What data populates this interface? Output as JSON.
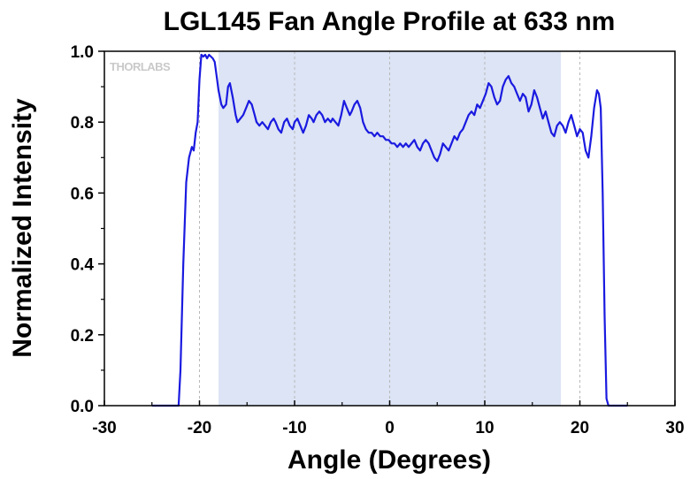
{
  "chart_data": {
    "type": "line",
    "title": "LGL145 Fan Angle Profile at 633 nm",
    "xlabel": "Angle (Degrees)",
    "ylabel": "Normalized Intensity",
    "xlim": [
      -30,
      30
    ],
    "ylim": [
      0,
      1.0
    ],
    "x_ticks": [
      -30,
      -20,
      -10,
      0,
      10,
      20,
      30
    ],
    "y_ticks": [
      0.0,
      0.2,
      0.4,
      0.6,
      0.8,
      1.0
    ],
    "x_tick_labels": [
      "-30",
      "-20",
      "-10",
      "0",
      "10",
      "20",
      "30"
    ],
    "y_tick_labels": [
      "0.0",
      "0.2",
      "0.4",
      "0.6",
      "0.8",
      "1.0"
    ],
    "grid": "vertical dashed",
    "shaded_region": {
      "x_from": -18,
      "x_to": 18,
      "color": "#dce4f5"
    },
    "logo_text": "THORLABS",
    "series": [
      {
        "color": "#1a1ae0",
        "points": [
          [
            -25.0,
            0.0
          ],
          [
            -22.2,
            0.0
          ],
          [
            -22.0,
            0.1
          ],
          [
            -21.7,
            0.4
          ],
          [
            -21.4,
            0.63
          ],
          [
            -21.1,
            0.7
          ],
          [
            -20.8,
            0.73
          ],
          [
            -20.6,
            0.72
          ],
          [
            -20.4,
            0.77
          ],
          [
            -20.2,
            0.8
          ],
          [
            -20.0,
            0.92
          ],
          [
            -19.8,
            0.99
          ],
          [
            -19.6,
            0.985
          ],
          [
            -19.4,
            0.99
          ],
          [
            -19.2,
            0.98
          ],
          [
            -19.0,
            0.99
          ],
          [
            -18.8,
            0.985
          ],
          [
            -18.6,
            0.98
          ],
          [
            -18.4,
            0.97
          ],
          [
            -18.2,
            0.93
          ],
          [
            -18.0,
            0.89
          ],
          [
            -17.7,
            0.85
          ],
          [
            -17.5,
            0.84
          ],
          [
            -17.2,
            0.85
          ],
          [
            -17.0,
            0.9
          ],
          [
            -16.8,
            0.91
          ],
          [
            -16.5,
            0.87
          ],
          [
            -16.2,
            0.82
          ],
          [
            -16.0,
            0.8
          ],
          [
            -15.7,
            0.81
          ],
          [
            -15.4,
            0.82
          ],
          [
            -15.1,
            0.84
          ],
          [
            -14.8,
            0.86
          ],
          [
            -14.5,
            0.85
          ],
          [
            -14.2,
            0.82
          ],
          [
            -14.0,
            0.8
          ],
          [
            -13.7,
            0.79
          ],
          [
            -13.4,
            0.8
          ],
          [
            -13.1,
            0.79
          ],
          [
            -12.8,
            0.78
          ],
          [
            -12.5,
            0.8
          ],
          [
            -12.2,
            0.81
          ],
          [
            -12.0,
            0.8
          ],
          [
            -11.7,
            0.78
          ],
          [
            -11.4,
            0.77
          ],
          [
            -11.1,
            0.8
          ],
          [
            -10.8,
            0.81
          ],
          [
            -10.5,
            0.79
          ],
          [
            -10.2,
            0.78
          ],
          [
            -10.0,
            0.8
          ],
          [
            -9.7,
            0.81
          ],
          [
            -9.4,
            0.79
          ],
          [
            -9.1,
            0.77
          ],
          [
            -8.8,
            0.79
          ],
          [
            -8.5,
            0.82
          ],
          [
            -8.2,
            0.81
          ],
          [
            -8.0,
            0.8
          ],
          [
            -7.7,
            0.82
          ],
          [
            -7.4,
            0.83
          ],
          [
            -7.1,
            0.82
          ],
          [
            -6.8,
            0.8
          ],
          [
            -6.5,
            0.81
          ],
          [
            -6.2,
            0.8
          ],
          [
            -6.0,
            0.81
          ],
          [
            -5.7,
            0.8
          ],
          [
            -5.4,
            0.79
          ],
          [
            -5.1,
            0.82
          ],
          [
            -4.8,
            0.86
          ],
          [
            -4.5,
            0.84
          ],
          [
            -4.2,
            0.82
          ],
          [
            -4.0,
            0.83
          ],
          [
            -3.7,
            0.85
          ],
          [
            -3.4,
            0.86
          ],
          [
            -3.1,
            0.84
          ],
          [
            -2.8,
            0.8
          ],
          [
            -2.5,
            0.78
          ],
          [
            -2.2,
            0.77
          ],
          [
            -1.9,
            0.77
          ],
          [
            -1.6,
            0.76
          ],
          [
            -1.3,
            0.77
          ],
          [
            -1.0,
            0.76
          ],
          [
            -0.7,
            0.76
          ],
          [
            -0.4,
            0.75
          ],
          [
            -0.1,
            0.75
          ],
          [
            0.2,
            0.74
          ],
          [
            0.5,
            0.74
          ],
          [
            0.8,
            0.73
          ],
          [
            1.1,
            0.74
          ],
          [
            1.4,
            0.73
          ],
          [
            1.7,
            0.74
          ],
          [
            2.0,
            0.73
          ],
          [
            2.3,
            0.74
          ],
          [
            2.6,
            0.75
          ],
          [
            2.9,
            0.73
          ],
          [
            3.2,
            0.72
          ],
          [
            3.5,
            0.74
          ],
          [
            3.8,
            0.75
          ],
          [
            4.1,
            0.74
          ],
          [
            4.4,
            0.72
          ],
          [
            4.7,
            0.7
          ],
          [
            5.0,
            0.69
          ],
          [
            5.3,
            0.71
          ],
          [
            5.6,
            0.74
          ],
          [
            5.9,
            0.73
          ],
          [
            6.2,
            0.72
          ],
          [
            6.5,
            0.74
          ],
          [
            6.8,
            0.76
          ],
          [
            7.1,
            0.75
          ],
          [
            7.4,
            0.77
          ],
          [
            7.7,
            0.78
          ],
          [
            8.0,
            0.8
          ],
          [
            8.3,
            0.82
          ],
          [
            8.6,
            0.83
          ],
          [
            8.9,
            0.82
          ],
          [
            9.2,
            0.85
          ],
          [
            9.5,
            0.84
          ],
          [
            9.8,
            0.86
          ],
          [
            10.1,
            0.88
          ],
          [
            10.4,
            0.91
          ],
          [
            10.7,
            0.9
          ],
          [
            11.0,
            0.87
          ],
          [
            11.3,
            0.85
          ],
          [
            11.6,
            0.86
          ],
          [
            11.9,
            0.9
          ],
          [
            12.2,
            0.92
          ],
          [
            12.5,
            0.93
          ],
          [
            12.8,
            0.91
          ],
          [
            13.1,
            0.9
          ],
          [
            13.4,
            0.88
          ],
          [
            13.7,
            0.86
          ],
          [
            14.0,
            0.88
          ],
          [
            14.3,
            0.87
          ],
          [
            14.6,
            0.83
          ],
          [
            14.9,
            0.85
          ],
          [
            15.2,
            0.89
          ],
          [
            15.5,
            0.87
          ],
          [
            15.8,
            0.84
          ],
          [
            16.1,
            0.81
          ],
          [
            16.4,
            0.83
          ],
          [
            16.7,
            0.8
          ],
          [
            17.0,
            0.77
          ],
          [
            17.3,
            0.76
          ],
          [
            17.6,
            0.79
          ],
          [
            17.9,
            0.8
          ],
          [
            18.2,
            0.79
          ],
          [
            18.5,
            0.77
          ],
          [
            18.8,
            0.8
          ],
          [
            19.1,
            0.82
          ],
          [
            19.4,
            0.79
          ],
          [
            19.7,
            0.76
          ],
          [
            20.0,
            0.78
          ],
          [
            20.3,
            0.77
          ],
          [
            20.6,
            0.72
          ],
          [
            20.9,
            0.7
          ],
          [
            21.2,
            0.76
          ],
          [
            21.5,
            0.84
          ],
          [
            21.8,
            0.89
          ],
          [
            22.0,
            0.88
          ],
          [
            22.2,
            0.84
          ],
          [
            22.4,
            0.6
          ],
          [
            22.6,
            0.25
          ],
          [
            22.8,
            0.02
          ],
          [
            23.0,
            0.0
          ],
          [
            25.0,
            0.0
          ]
        ]
      }
    ]
  }
}
